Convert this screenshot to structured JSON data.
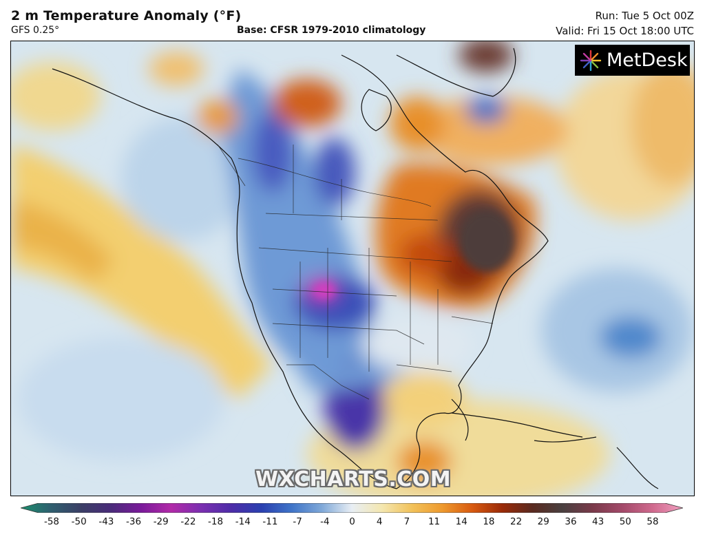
{
  "header": {
    "title": "2 m Temperature Anomaly (°F)",
    "model": "GFS 0.25°",
    "base": "Base: CFSR 1979-2010 climatology",
    "run": "Run: Tue 5 Oct 00Z",
    "valid": "Valid: Fri 15 Oct 18:00 UTC"
  },
  "logo": {
    "text": "MetDesk",
    "icon": "metdesk-burst-icon"
  },
  "watermark": "WXCHARTS.COM",
  "colorbar": {
    "ticks": [
      "-58",
      "-50",
      "-43",
      "-36",
      "-29",
      "-22",
      "-18",
      "-14",
      "-11",
      "-7",
      "-4",
      "0",
      "4",
      "7",
      "11",
      "14",
      "18",
      "22",
      "29",
      "36",
      "43",
      "50",
      "58"
    ],
    "colors": [
      "#1a8f6e",
      "#2f5f6f",
      "#3b3f66",
      "#4a2b7a",
      "#7a1a9a",
      "#b12aa8",
      "#7a2fb0",
      "#4d2ca8",
      "#2a40b0",
      "#3f74c8",
      "#7fa8d8",
      "#e8eef4",
      "#f4e7b0",
      "#f2c25a",
      "#ee9a2e",
      "#d85a10",
      "#9a2a08",
      "#5a2a20",
      "#4a4040",
      "#7a3a4a",
      "#a44a6a",
      "#d06a8e",
      "#f0a0c0"
    ]
  }
}
